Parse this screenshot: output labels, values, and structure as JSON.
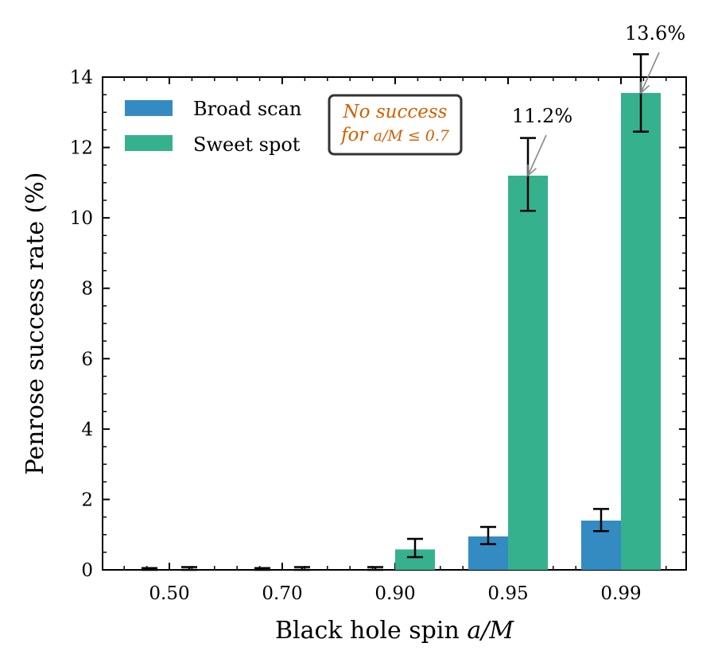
{
  "chart_data": {
    "type": "bar",
    "categories": [
      "0.50",
      "0.70",
      "0.90",
      "0.95",
      "0.99"
    ],
    "series": [
      {
        "name": "Broad scan",
        "color": "#348bc2",
        "values": [
          0.0,
          0.0,
          0.0,
          0.95,
          1.4
        ],
        "err_low": [
          0.0,
          0.0,
          0.0,
          0.22,
          0.3
        ],
        "err_high": [
          0.05,
          0.05,
          0.08,
          0.27,
          0.33
        ]
      },
      {
        "name": "Sweet spot",
        "color": "#35b18e",
        "values": [
          0.0,
          0.0,
          0.58,
          11.2,
          13.55
        ],
        "err_low": [
          0.0,
          0.0,
          0.22,
          1.0,
          1.1
        ],
        "err_high": [
          0.08,
          0.08,
          0.3,
          1.07,
          1.1
        ]
      }
    ],
    "xlabel": "Black hole spin a/M",
    "xlabel_text": "Black hole spin ",
    "xlabel_math": "a/M",
    "ylabel": "Penrose success rate (%)",
    "ylim": [
      0,
      14
    ],
    "yticks": [
      "0",
      "2",
      "4",
      "6",
      "8",
      "10",
      "12",
      "14"
    ],
    "legend_position": "top-left",
    "annotations": [
      {
        "text": "11.2%",
        "category": "0.95",
        "series": "Sweet spot",
        "value": 11.2
      },
      {
        "text": "13.6%",
        "category": "0.99",
        "series": "Sweet spot",
        "value": 13.55
      }
    ],
    "note": {
      "line1": "No success",
      "line2_prefix": "for ",
      "line2_math": "a/M ≤ 0.7",
      "color": "#d35f00"
    }
  }
}
